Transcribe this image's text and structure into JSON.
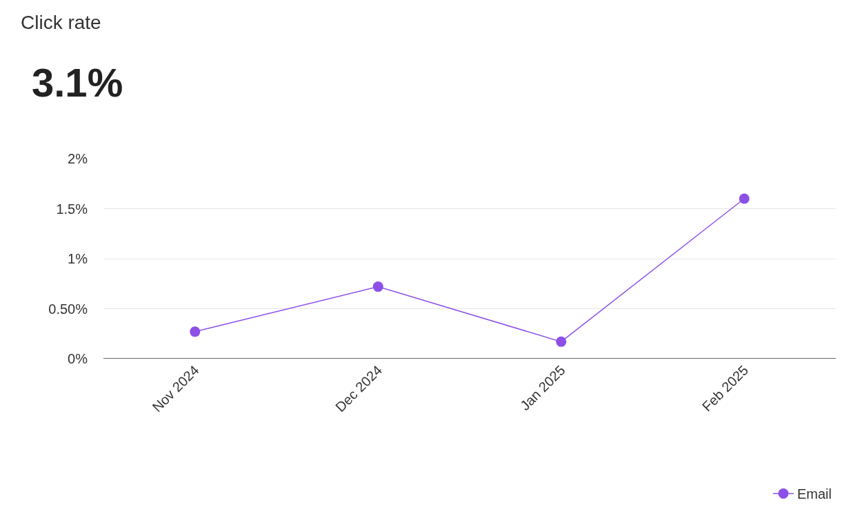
{
  "chart_data": {
    "type": "line",
    "title": "Click rate",
    "subtitle": "3.1%",
    "categories": [
      "Nov 2024",
      "Dec 2024",
      "Jan 2025",
      "Feb 2025"
    ],
    "series": [
      {
        "name": "Email",
        "color": "#8c4fe8",
        "values": [
          0.27,
          0.72,
          0.17,
          1.6
        ]
      }
    ],
    "ylim": [
      0,
      2
    ],
    "yticks": [
      {
        "value": 0,
        "label": "0%"
      },
      {
        "value": 0.5,
        "label": "0.50%"
      },
      {
        "value": 1,
        "label": "1%"
      },
      {
        "value": 1.5,
        "label": "1.5%"
      },
      {
        "value": 2,
        "label": "2%"
      }
    ],
    "grid": "y",
    "legend": "bottom right",
    "marker": "circle",
    "line_style": "solid"
  }
}
